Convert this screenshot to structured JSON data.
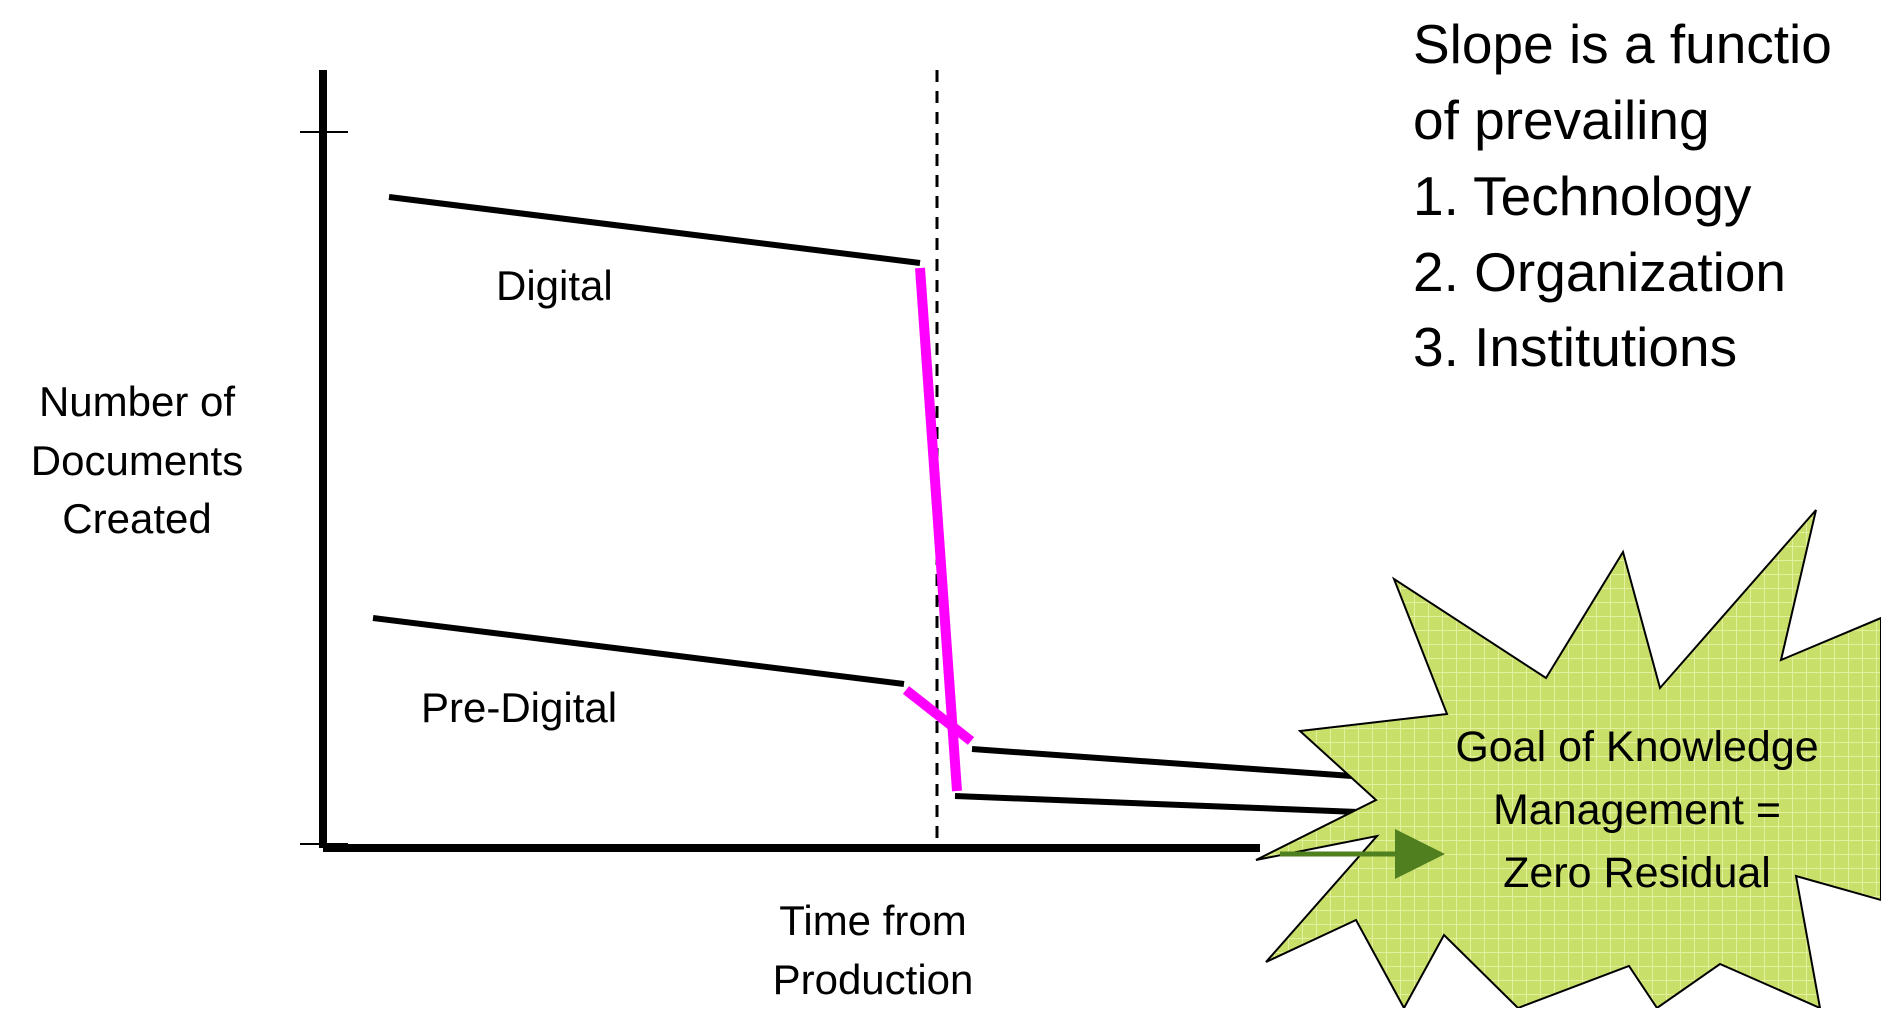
{
  "diagram": {
    "y_axis_label": [
      "Number of",
      "Documents",
      "Created"
    ],
    "x_axis_label": [
      "Time from",
      "Production"
    ],
    "series_labels": {
      "digital": "Digital",
      "pre_digital": "Pre-Digital"
    },
    "slope_note": [
      "Slope is a functio",
      "of prevailing",
      "1. Technology",
      "2. Organization",
      "3. Institutions"
    ],
    "goal_callout": [
      "Goal of Knowledge",
      "Management =",
      "Zero Residual"
    ],
    "colors": {
      "line": "#000000",
      "transition": "#ff00ff",
      "burst_fill": "#c8e06a",
      "burst_grid": "#e2ef9e",
      "arrow": "#4f7f1e"
    }
  }
}
